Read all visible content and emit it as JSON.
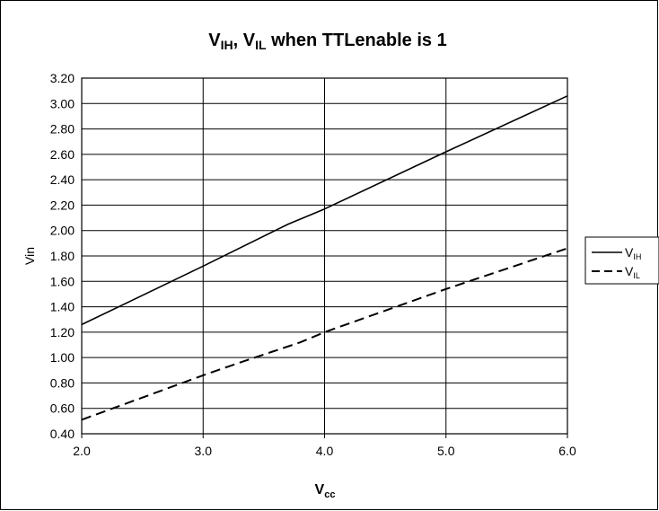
{
  "chart_data": {
    "type": "line",
    "title": {
      "main": "V",
      "sub1": "IH",
      "mid": ", V",
      "sub2": "IL",
      "tail": " when TTLenable is 1"
    },
    "xlabel": {
      "main": "V",
      "sub": "cc"
    },
    "ylabel": "Vin",
    "xlim": [
      2.0,
      6.0
    ],
    "ylim": [
      0.4,
      3.2
    ],
    "x_ticks": [
      "2.0",
      "3.0",
      "4.0",
      "5.0",
      "6.0"
    ],
    "y_ticks": [
      "3.20",
      "3.00",
      "2.80",
      "2.60",
      "2.40",
      "2.20",
      "2.00",
      "1.80",
      "1.60",
      "1.40",
      "1.20",
      "1.00",
      "0.80",
      "0.60",
      "0.40"
    ],
    "grid": true,
    "legend_position": "right",
    "series": [
      {
        "name": {
          "main": "V",
          "sub": "IH"
        },
        "style": "solid",
        "x": [
          2.0,
          3.0,
          3.7,
          4.0,
          5.0,
          6.0
        ],
        "y": [
          1.26,
          1.72,
          2.05,
          2.17,
          2.62,
          3.06
        ]
      },
      {
        "name": {
          "main": "V",
          "sub": "IL"
        },
        "style": "dashed",
        "x": [
          2.0,
          3.0,
          3.3,
          3.8,
          4.0,
          5.0,
          6.0
        ],
        "y": [
          0.51,
          0.86,
          0.96,
          1.12,
          1.2,
          1.54,
          1.86
        ]
      }
    ]
  }
}
